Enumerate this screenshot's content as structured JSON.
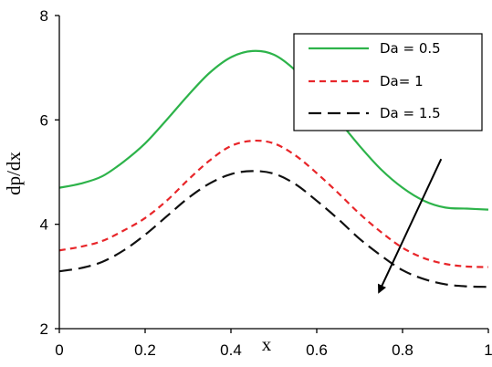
{
  "chart_data": {
    "type": "line",
    "xlabel": "x",
    "ylabel": "dp/dx",
    "xlim": [
      0,
      1
    ],
    "ylim": [
      2,
      8
    ],
    "x_ticks": [
      {
        "value": 0,
        "label": "0"
      },
      {
        "value": 0.2,
        "label": "0.2"
      },
      {
        "value": 0.4,
        "label": "0.4"
      },
      {
        "value": 0.6,
        "label": "0.6"
      },
      {
        "value": 0.8,
        "label": "0.8"
      },
      {
        "value": 1,
        "label": "1"
      }
    ],
    "y_ticks": [
      {
        "value": 2,
        "label": "2"
      },
      {
        "value": 4,
        "label": "4"
      },
      {
        "value": 6,
        "label": "6"
      },
      {
        "value": 8,
        "label": "8"
      }
    ],
    "grid": false,
    "legend_position": "top-right",
    "series": [
      {
        "name": "Da = 0.5",
        "color": "#2db34a",
        "style": "solid",
        "x": [
          0,
          0.05,
          0.1,
          0.15,
          0.2,
          0.25,
          0.3,
          0.35,
          0.4,
          0.45,
          0.5,
          0.55,
          0.6,
          0.65,
          0.7,
          0.75,
          0.8,
          0.85,
          0.9,
          0.95,
          1
        ],
        "y": [
          4.7,
          4.78,
          4.92,
          5.2,
          5.55,
          6.0,
          6.47,
          6.9,
          7.2,
          7.32,
          7.25,
          6.95,
          6.5,
          6.0,
          5.5,
          5.05,
          4.7,
          4.45,
          4.32,
          4.3,
          4.28
        ]
      },
      {
        "name": "Da= 1",
        "color": "#e8262a",
        "style": "dashed",
        "x": [
          0,
          0.05,
          0.1,
          0.15,
          0.2,
          0.25,
          0.3,
          0.35,
          0.4,
          0.45,
          0.5,
          0.55,
          0.6,
          0.65,
          0.7,
          0.75,
          0.8,
          0.85,
          0.9,
          0.95,
          1
        ],
        "y": [
          3.5,
          3.57,
          3.68,
          3.88,
          4.12,
          4.45,
          4.85,
          5.22,
          5.5,
          5.6,
          5.55,
          5.32,
          4.98,
          4.6,
          4.2,
          3.85,
          3.55,
          3.35,
          3.24,
          3.19,
          3.18
        ]
      },
      {
        "name": "Da = 1.5",
        "color": "#111111",
        "style": "longdash",
        "x": [
          0,
          0.05,
          0.1,
          0.15,
          0.2,
          0.25,
          0.3,
          0.35,
          0.4,
          0.45,
          0.5,
          0.55,
          0.6,
          0.65,
          0.7,
          0.75,
          0.8,
          0.85,
          0.9,
          0.95,
          1
        ],
        "y": [
          3.1,
          3.16,
          3.28,
          3.5,
          3.8,
          4.15,
          4.5,
          4.78,
          4.96,
          5.02,
          4.97,
          4.77,
          4.45,
          4.1,
          3.72,
          3.4,
          3.12,
          2.95,
          2.85,
          2.81,
          2.8
        ]
      }
    ],
    "annotations": [
      {
        "type": "arrow",
        "from": [
          0.89,
          5.25
        ],
        "to": [
          0.745,
          2.7
        ],
        "color": "#000000",
        "meaning": "increasing Da"
      }
    ]
  }
}
